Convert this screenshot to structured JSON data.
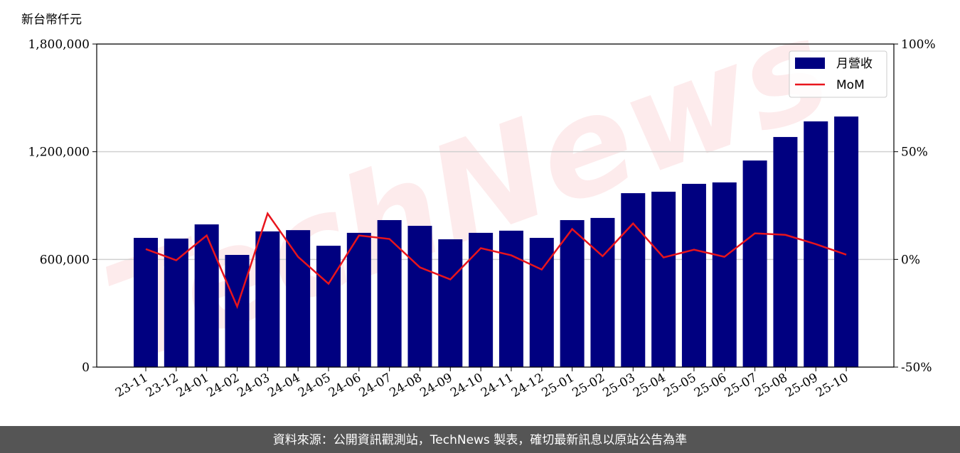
{
  "chart_data": {
    "type": "bar",
    "y_label": "新台幣仟元",
    "watermark": "TechNews",
    "footer": "資料來源：公開資訊觀測站，TechNews 製表，確切最新訊息以原站公告為準",
    "categories": [
      "23-11",
      "23-12",
      "24-01",
      "24-02",
      "24-03",
      "24-04",
      "24-05",
      "24-06",
      "24-07",
      "24-08",
      "24-09",
      "24-10",
      "24-11",
      "24-12",
      "25-01",
      "25-02",
      "25-03",
      "25-04",
      "25-05",
      "25-06",
      "25-07",
      "25-08",
      "25-09",
      "25-10"
    ],
    "series": [
      {
        "name": "月營收",
        "type": "bar",
        "color": "#000080",
        "values": [
          720000,
          716000,
          795000,
          625000,
          756000,
          763000,
          676000,
          748000,
          819000,
          787000,
          712000,
          748000,
          760000,
          720000,
          819000,
          831000,
          969000,
          977000,
          1021000,
          1029000,
          1151000,
          1282000,
          1369000,
          1396000
        ]
      },
      {
        "name": "MoM",
        "type": "line",
        "axis": "y2",
        "color": "#e8141c",
        "values": [
          4.8,
          -0.4,
          11.1,
          -21.9,
          21.3,
          1.2,
          -11.3,
          11.1,
          9.5,
          -3.7,
          -9.3,
          5.2,
          1.9,
          -4.7,
          14.1,
          1.5,
          16.7,
          0.9,
          4.5,
          1.2,
          12.1,
          11.4,
          7.1,
          2.2
        ]
      }
    ],
    "ylim": [
      0,
      1800000
    ],
    "yticks": [
      0,
      {
        "value": 600000,
        "label": "600,000"
      },
      {
        "value": 1200000,
        "label": "1,200,000"
      },
      {
        "value": 1800000,
        "label": "1,800,000"
      }
    ],
    "y2lim": [
      -50,
      100
    ],
    "y2ticks": [
      {
        "value": -50,
        "label": "-50%"
      },
      {
        "value": 0,
        "label": "0%"
      },
      {
        "value": 50,
        "label": "50%"
      },
      {
        "value": 100,
        "label": "100%"
      }
    ],
    "grid": true,
    "legend": "upper right"
  }
}
